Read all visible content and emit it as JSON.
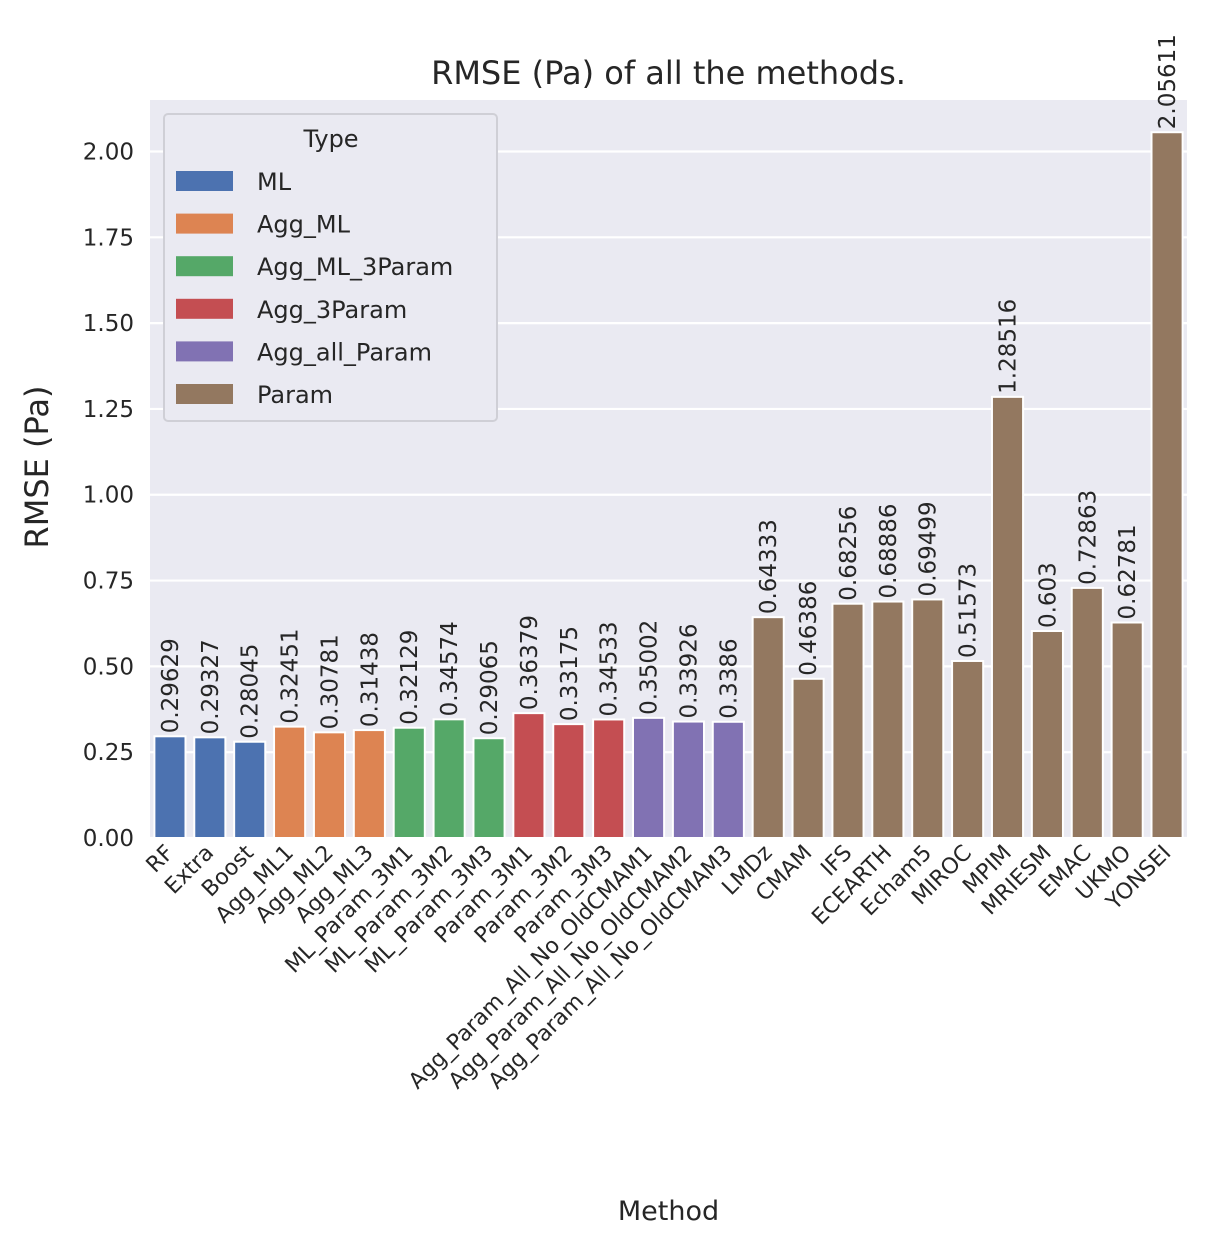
{
  "chart_data": {
    "type": "bar",
    "title": "RMSE (Pa) of all the methods.",
    "xlabel": "Method",
    "ylabel": "RMSE (Pa)",
    "ylim": [
      0,
      2.15
    ],
    "yticks": [
      "0.00",
      "0.25",
      "0.50",
      "0.75",
      "1.00",
      "1.25",
      "1.50",
      "1.75",
      "2.00"
    ],
    "grid": true,
    "legend": {
      "title": "Type",
      "placement": "upper-left",
      "entries": [
        "ML",
        "Agg_ML",
        "Agg_ML_3Param",
        "Agg_3Param",
        "Agg_all_Param",
        "Param"
      ]
    },
    "colors": {
      "ML": "#4c72b0",
      "Agg_ML": "#dd8452",
      "Agg_ML_3Param": "#55a868",
      "Agg_3Param": "#c44e52",
      "Agg_all_Param": "#8172b3",
      "Param": "#937860",
      "background": "#eaeaf2"
    },
    "categories": [
      "RF",
      "Extra",
      "Boost",
      "Agg_ML1",
      "Agg_ML2",
      "Agg_ML3",
      "ML_Param_3M1",
      "ML_Param_3M2",
      "ML_Param_3M3",
      "Param_3M1",
      "Param_3M2",
      "Param_3M3",
      "Agg_Param_All_No_OldCMAM1",
      "Agg_Param_All_No_OldCMAM2",
      "Agg_Param_All_No_OldCMAM3",
      "LMDz",
      "CMAM",
      "IFS",
      "ECEARTH",
      "Echam5",
      "MIROC",
      "MPIM",
      "MRIESM",
      "EMAC",
      "UKMO",
      "YONSEI"
    ],
    "types": [
      "ML",
      "ML",
      "ML",
      "Agg_ML",
      "Agg_ML",
      "Agg_ML",
      "Agg_ML_3Param",
      "Agg_ML_3Param",
      "Agg_ML_3Param",
      "Agg_3Param",
      "Agg_3Param",
      "Agg_3Param",
      "Agg_all_Param",
      "Agg_all_Param",
      "Agg_all_Param",
      "Param",
      "Param",
      "Param",
      "Param",
      "Param",
      "Param",
      "Param",
      "Param",
      "Param",
      "Param",
      "Param"
    ],
    "values": [
      0.29629,
      0.29327,
      0.28045,
      0.32451,
      0.30781,
      0.31438,
      0.32129,
      0.34574,
      0.29065,
      0.36379,
      0.33175,
      0.34533,
      0.35002,
      0.33926,
      0.3386,
      0.64333,
      0.46386,
      0.68256,
      0.68886,
      0.69499,
      0.51573,
      1.28516,
      0.603,
      0.72863,
      0.62781,
      2.05611
    ],
    "data_labels": [
      "0.29629",
      "0.29327",
      "0.28045",
      "0.32451",
      "0.30781",
      "0.31438",
      "0.32129",
      "0.34574",
      "0.29065",
      "0.36379",
      "0.33175",
      "0.34533",
      "0.35002",
      "0.33926",
      "0.3386",
      "0.64333",
      "0.46386",
      "0.68256",
      "0.68886",
      "0.69499",
      "0.51573",
      "1.28516",
      "0.603",
      "0.72863",
      "0.62781",
      "2.05611"
    ]
  }
}
